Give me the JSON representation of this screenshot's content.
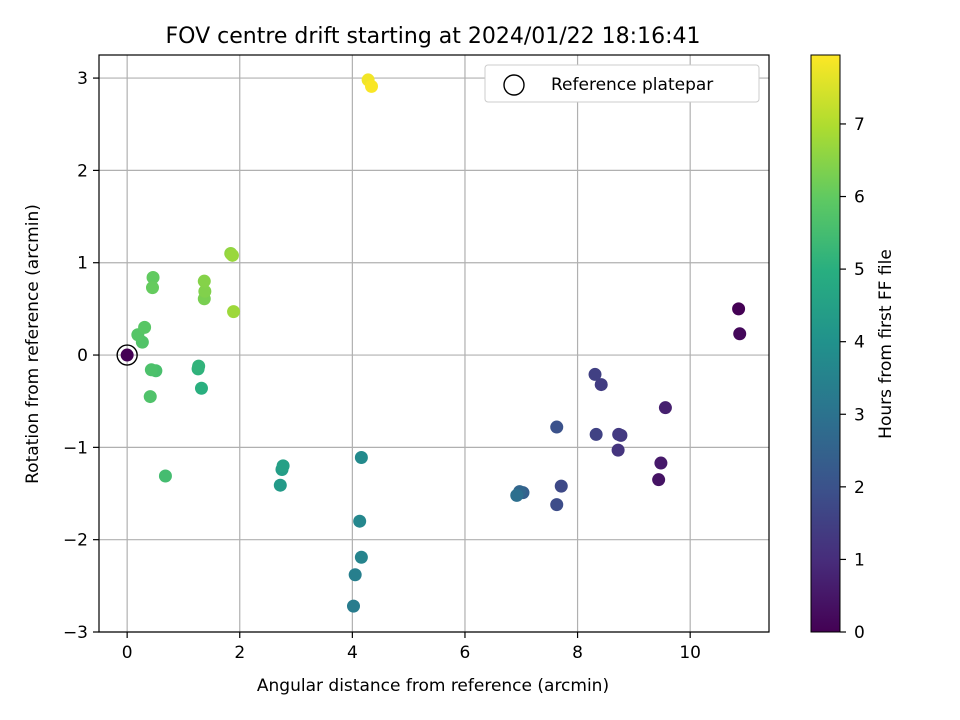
{
  "chart_data": {
    "type": "scatter",
    "title": "FOV centre drift starting at 2024/01/22 18:16:41",
    "xlabel": "Angular distance from reference (arcmin)",
    "ylabel": "Rotation from reference (arcmin)",
    "xlim": [
      -0.5,
      11.4
    ],
    "ylim": [
      -3.0,
      3.25
    ],
    "xticks": [
      "0",
      "2",
      "4",
      "6",
      "8",
      "10"
    ],
    "yticks": [
      "−3",
      "−2",
      "−1",
      "0",
      "1",
      "2",
      "3"
    ],
    "grid": true,
    "legend": {
      "placement": "top-right",
      "entries": [
        "Reference platepar"
      ]
    },
    "reference_point": {
      "x": 0,
      "y": 0
    },
    "colorbar": {
      "label": "Hours from first FF file",
      "range": [
        0,
        7.95
      ],
      "ticks": [
        "0",
        "1",
        "2",
        "3",
        "4",
        "5",
        "6",
        "7"
      ],
      "colormap": "viridis"
    },
    "points": [
      {
        "x": 10.86,
        "y": 0.5,
        "c": 0.0
      },
      {
        "x": 10.88,
        "y": 0.23,
        "c": 0.15
      },
      {
        "x": 9.44,
        "y": -1.35,
        "c": 0.4
      },
      {
        "x": 9.48,
        "y": -1.17,
        "c": 0.55
      },
      {
        "x": 9.56,
        "y": -0.57,
        "c": 0.7
      },
      {
        "x": 8.72,
        "y": -1.03,
        "c": 1.2
      },
      {
        "x": 8.77,
        "y": -0.87,
        "c": 1.3
      },
      {
        "x": 8.73,
        "y": -0.86,
        "c": 1.35
      },
      {
        "x": 8.42,
        "y": -0.32,
        "c": 1.4
      },
      {
        "x": 8.31,
        "y": -0.21,
        "c": 1.5
      },
      {
        "x": 8.33,
        "y": -0.86,
        "c": 1.55
      },
      {
        "x": 7.71,
        "y": -1.42,
        "c": 1.75
      },
      {
        "x": 7.63,
        "y": -1.62,
        "c": 1.85
      },
      {
        "x": 7.63,
        "y": -0.78,
        "c": 2.0
      },
      {
        "x": 7.03,
        "y": -1.49,
        "c": 2.4
      },
      {
        "x": 6.97,
        "y": -1.48,
        "c": 2.6
      },
      {
        "x": 6.92,
        "y": -1.52,
        "c": 2.9
      },
      {
        "x": 4.02,
        "y": -2.72,
        "c": 3.3
      },
      {
        "x": 4.05,
        "y": -2.38,
        "c": 3.4
      },
      {
        "x": 4.16,
        "y": -2.19,
        "c": 3.55
      },
      {
        "x": 4.13,
        "y": -1.8,
        "c": 3.65
      },
      {
        "x": 4.16,
        "y": -1.11,
        "c": 3.75
      },
      {
        "x": 2.72,
        "y": -1.41,
        "c": 4.3
      },
      {
        "x": 2.75,
        "y": -1.24,
        "c": 4.4
      },
      {
        "x": 2.77,
        "y": -1.2,
        "c": 4.5
      },
      {
        "x": 1.32,
        "y": -0.36,
        "c": 5.0
      },
      {
        "x": 1.26,
        "y": -0.15,
        "c": 5.1
      },
      {
        "x": 1.27,
        "y": -0.12,
        "c": 5.15
      },
      {
        "x": 0.68,
        "y": -1.31,
        "c": 5.5
      },
      {
        "x": 0.51,
        "y": -0.17,
        "c": 5.6
      },
      {
        "x": 0.43,
        "y": -0.16,
        "c": 5.65
      },
      {
        "x": 0.41,
        "y": -0.45,
        "c": 5.7
      },
      {
        "x": 0.27,
        "y": 0.14,
        "c": 5.75
      },
      {
        "x": 0.19,
        "y": 0.22,
        "c": 5.8
      },
      {
        "x": 0.31,
        "y": 0.3,
        "c": 5.85
      },
      {
        "x": 0.46,
        "y": 0.84,
        "c": 6.0
      },
      {
        "x": 0.45,
        "y": 0.73,
        "c": 6.05
      },
      {
        "x": 1.37,
        "y": 0.61,
        "c": 6.3
      },
      {
        "x": 1.38,
        "y": 0.69,
        "c": 6.4
      },
      {
        "x": 1.37,
        "y": 0.8,
        "c": 6.45
      },
      {
        "x": 1.84,
        "y": 1.1,
        "c": 6.6
      },
      {
        "x": 1.87,
        "y": 1.08,
        "c": 6.7
      },
      {
        "x": 1.89,
        "y": 0.47,
        "c": 6.75
      },
      {
        "x": 4.28,
        "y": 2.98,
        "c": 7.8
      },
      {
        "x": 4.34,
        "y": 2.91,
        "c": 7.9
      },
      {
        "x": 0.0,
        "y": 0.0,
        "c": 0.0
      }
    ]
  }
}
